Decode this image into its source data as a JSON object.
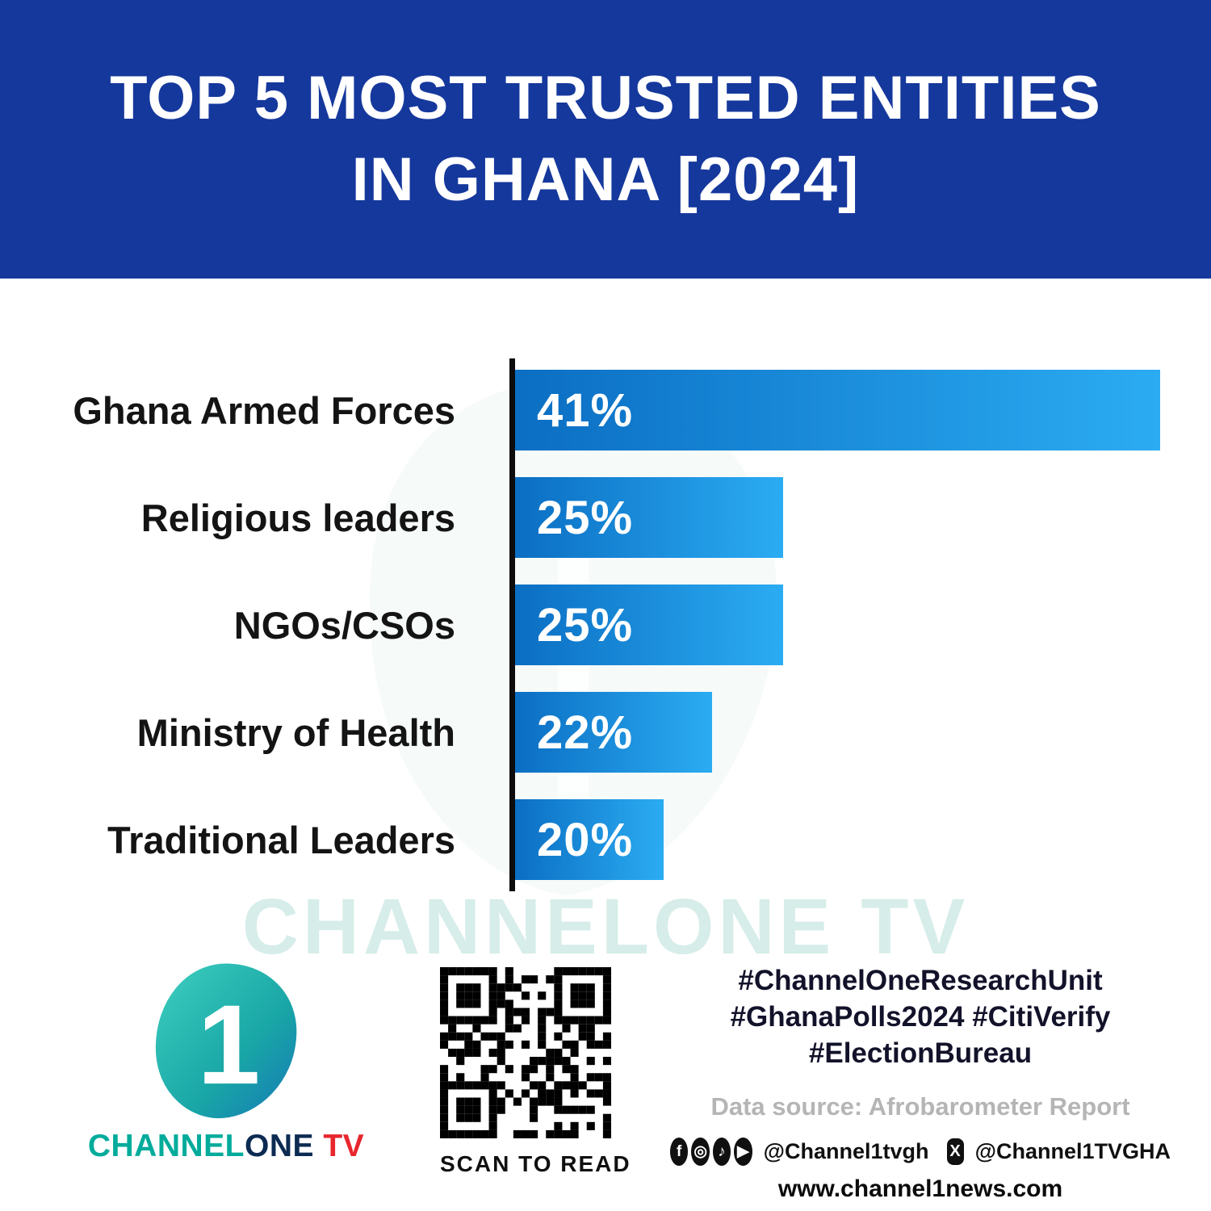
{
  "header": {
    "title_line1": "TOP 5 MOST TRUSTED ENTITIES",
    "title_line2": "IN GHANA [2024]"
  },
  "chart_data": {
    "type": "bar",
    "orientation": "horizontal",
    "title": "Top 5 Most Trusted Entities in Ghana [2024]",
    "categories": [
      "Ghana Armed Forces",
      "Religious leaders",
      "NGOs/CSOs",
      "Ministry of Health",
      "Traditional Leaders"
    ],
    "values": [
      41,
      25,
      25,
      22,
      20
    ],
    "value_labels": [
      "41%",
      "25%",
      "25%",
      "22%",
      "20%"
    ],
    "unit": "%",
    "xlim": [
      0,
      41
    ],
    "grid": false,
    "legend": false,
    "bar_widths_pct": [
      100,
      41.5,
      41.5,
      30.5,
      23
    ],
    "bar_gradient": [
      "#0b6ec3",
      "#2bacf2"
    ],
    "axis_color": "#0c0c0c",
    "label_color": "#141414"
  },
  "watermark": {
    "text": "CHANNELONE TV"
  },
  "branding": {
    "logo_numeral": "1",
    "wordmark_channel": "CHANNEL",
    "wordmark_one": "ONE",
    "wordmark_tv": " TV"
  },
  "qr": {
    "caption": "SCAN TO READ"
  },
  "footer": {
    "hashtags": [
      "#ChannelOneResearchUnit",
      "#GhanaPolls2024 #CitiVerify",
      "#ElectionBureau"
    ],
    "data_source": "Data source: Afrobarometer Report",
    "social_handle_primary": "@Channel1tvgh",
    "social_handle_x": "@Channel1TVGHA",
    "website": "www.channel1news.com",
    "social_icons": [
      "facebook-icon",
      "instagram-icon",
      "tiktok-icon",
      "youtube-icon",
      "x-icon"
    ]
  },
  "colors": {
    "header_bg": "#15389c",
    "accent_teal": "#00ab9b",
    "accent_red": "#e8262d",
    "bar_start": "#0b6ec3",
    "bar_end": "#2bacf2"
  }
}
